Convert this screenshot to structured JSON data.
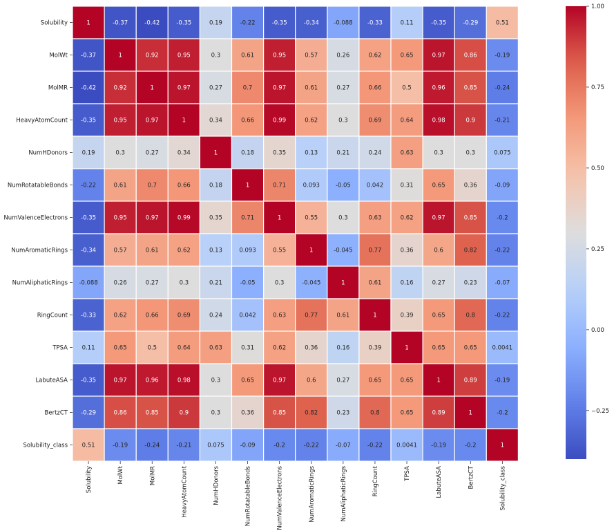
{
  "chart_data": {
    "type": "heatmap",
    "title": "",
    "colormap": "coolwarm",
    "vmin": -0.4,
    "vmax": 1.0,
    "grid_lines": "white",
    "row_labels": [
      "Solubility",
      "MolWt",
      "MolMR",
      "HeavyAtomCount",
      "NumHDonors",
      "NumRotatableBonds",
      "NumValenceElectrons",
      "NumAromaticRings",
      "NumAliphaticRings",
      "RingCount",
      "TPSA",
      "LabuteASA",
      "BertzCT",
      "Solubility_class"
    ],
    "col_labels": [
      "Solubility",
      "MolWt",
      "MolMR",
      "HeavyAtomCount",
      "NumHDonors",
      "NumRotatableBonds",
      "NumValenceElectrons",
      "NumAromaticRings",
      "NumAliphaticRings",
      "RingCount",
      "TPSA",
      "LabuteASA",
      "BertzCT",
      "Solubility_class"
    ],
    "values": [
      [
        1,
        -0.37,
        -0.42,
        -0.35,
        0.19,
        -0.22,
        -0.35,
        -0.34,
        -0.088,
        -0.33,
        0.11,
        -0.35,
        -0.29,
        0.51
      ],
      [
        -0.37,
        1,
        0.92,
        0.95,
        0.3,
        0.61,
        0.95,
        0.57,
        0.26,
        0.62,
        0.65,
        0.97,
        0.86,
        -0.19
      ],
      [
        -0.42,
        0.92,
        1,
        0.97,
        0.27,
        0.7,
        0.97,
        0.61,
        0.27,
        0.66,
        0.5,
        0.96,
        0.85,
        -0.24
      ],
      [
        -0.35,
        0.95,
        0.97,
        1,
        0.34,
        0.66,
        0.99,
        0.62,
        0.3,
        0.69,
        0.64,
        0.98,
        0.9,
        -0.21
      ],
      [
        0.19,
        0.3,
        0.27,
        0.34,
        1,
        0.18,
        0.35,
        0.13,
        0.21,
        0.24,
        0.63,
        0.3,
        0.3,
        0.075
      ],
      [
        -0.22,
        0.61,
        0.7,
        0.66,
        0.18,
        1,
        0.71,
        0.093,
        -0.05,
        0.042,
        0.31,
        0.65,
        0.36,
        -0.09
      ],
      [
        -0.35,
        0.95,
        0.97,
        0.99,
        0.35,
        0.71,
        1,
        0.55,
        0.3,
        0.63,
        0.62,
        0.97,
        0.85,
        -0.2
      ],
      [
        -0.34,
        0.57,
        0.61,
        0.62,
        0.13,
        0.093,
        0.55,
        1,
        -0.045,
        0.77,
        0.36,
        0.6,
        0.82,
        -0.22
      ],
      [
        -0.088,
        0.26,
        0.27,
        0.3,
        0.21,
        -0.05,
        0.3,
        -0.045,
        1,
        0.61,
        0.16,
        0.27,
        0.23,
        -0.07
      ],
      [
        -0.33,
        0.62,
        0.66,
        0.69,
        0.24,
        0.042,
        0.63,
        0.77,
        0.61,
        1,
        0.39,
        0.65,
        0.8,
        -0.22
      ],
      [
        0.11,
        0.65,
        0.5,
        0.64,
        0.63,
        0.31,
        0.62,
        0.36,
        0.16,
        0.39,
        1,
        0.65,
        0.65,
        0.0041
      ],
      [
        -0.35,
        0.97,
        0.96,
        0.98,
        0.3,
        0.65,
        0.97,
        0.6,
        0.27,
        0.65,
        0.65,
        1,
        0.89,
        -0.19
      ],
      [
        -0.29,
        0.86,
        0.85,
        0.9,
        0.3,
        0.36,
        0.85,
        0.82,
        0.23,
        0.8,
        0.65,
        0.89,
        1,
        -0.2
      ],
      [
        0.51,
        -0.19,
        -0.24,
        -0.21,
        0.075,
        -0.09,
        -0.2,
        -0.22,
        -0.07,
        -0.22,
        0.0041,
        -0.19,
        -0.2,
        1
      ]
    ],
    "colorbar": {
      "ticks": [
        1.0,
        0.75,
        0.5,
        0.25,
        0.0,
        -0.25
      ],
      "tick_labels": [
        "1.00",
        "0.75",
        "0.50",
        "0.25",
        "0.00",
        "−0.25"
      ]
    }
  }
}
